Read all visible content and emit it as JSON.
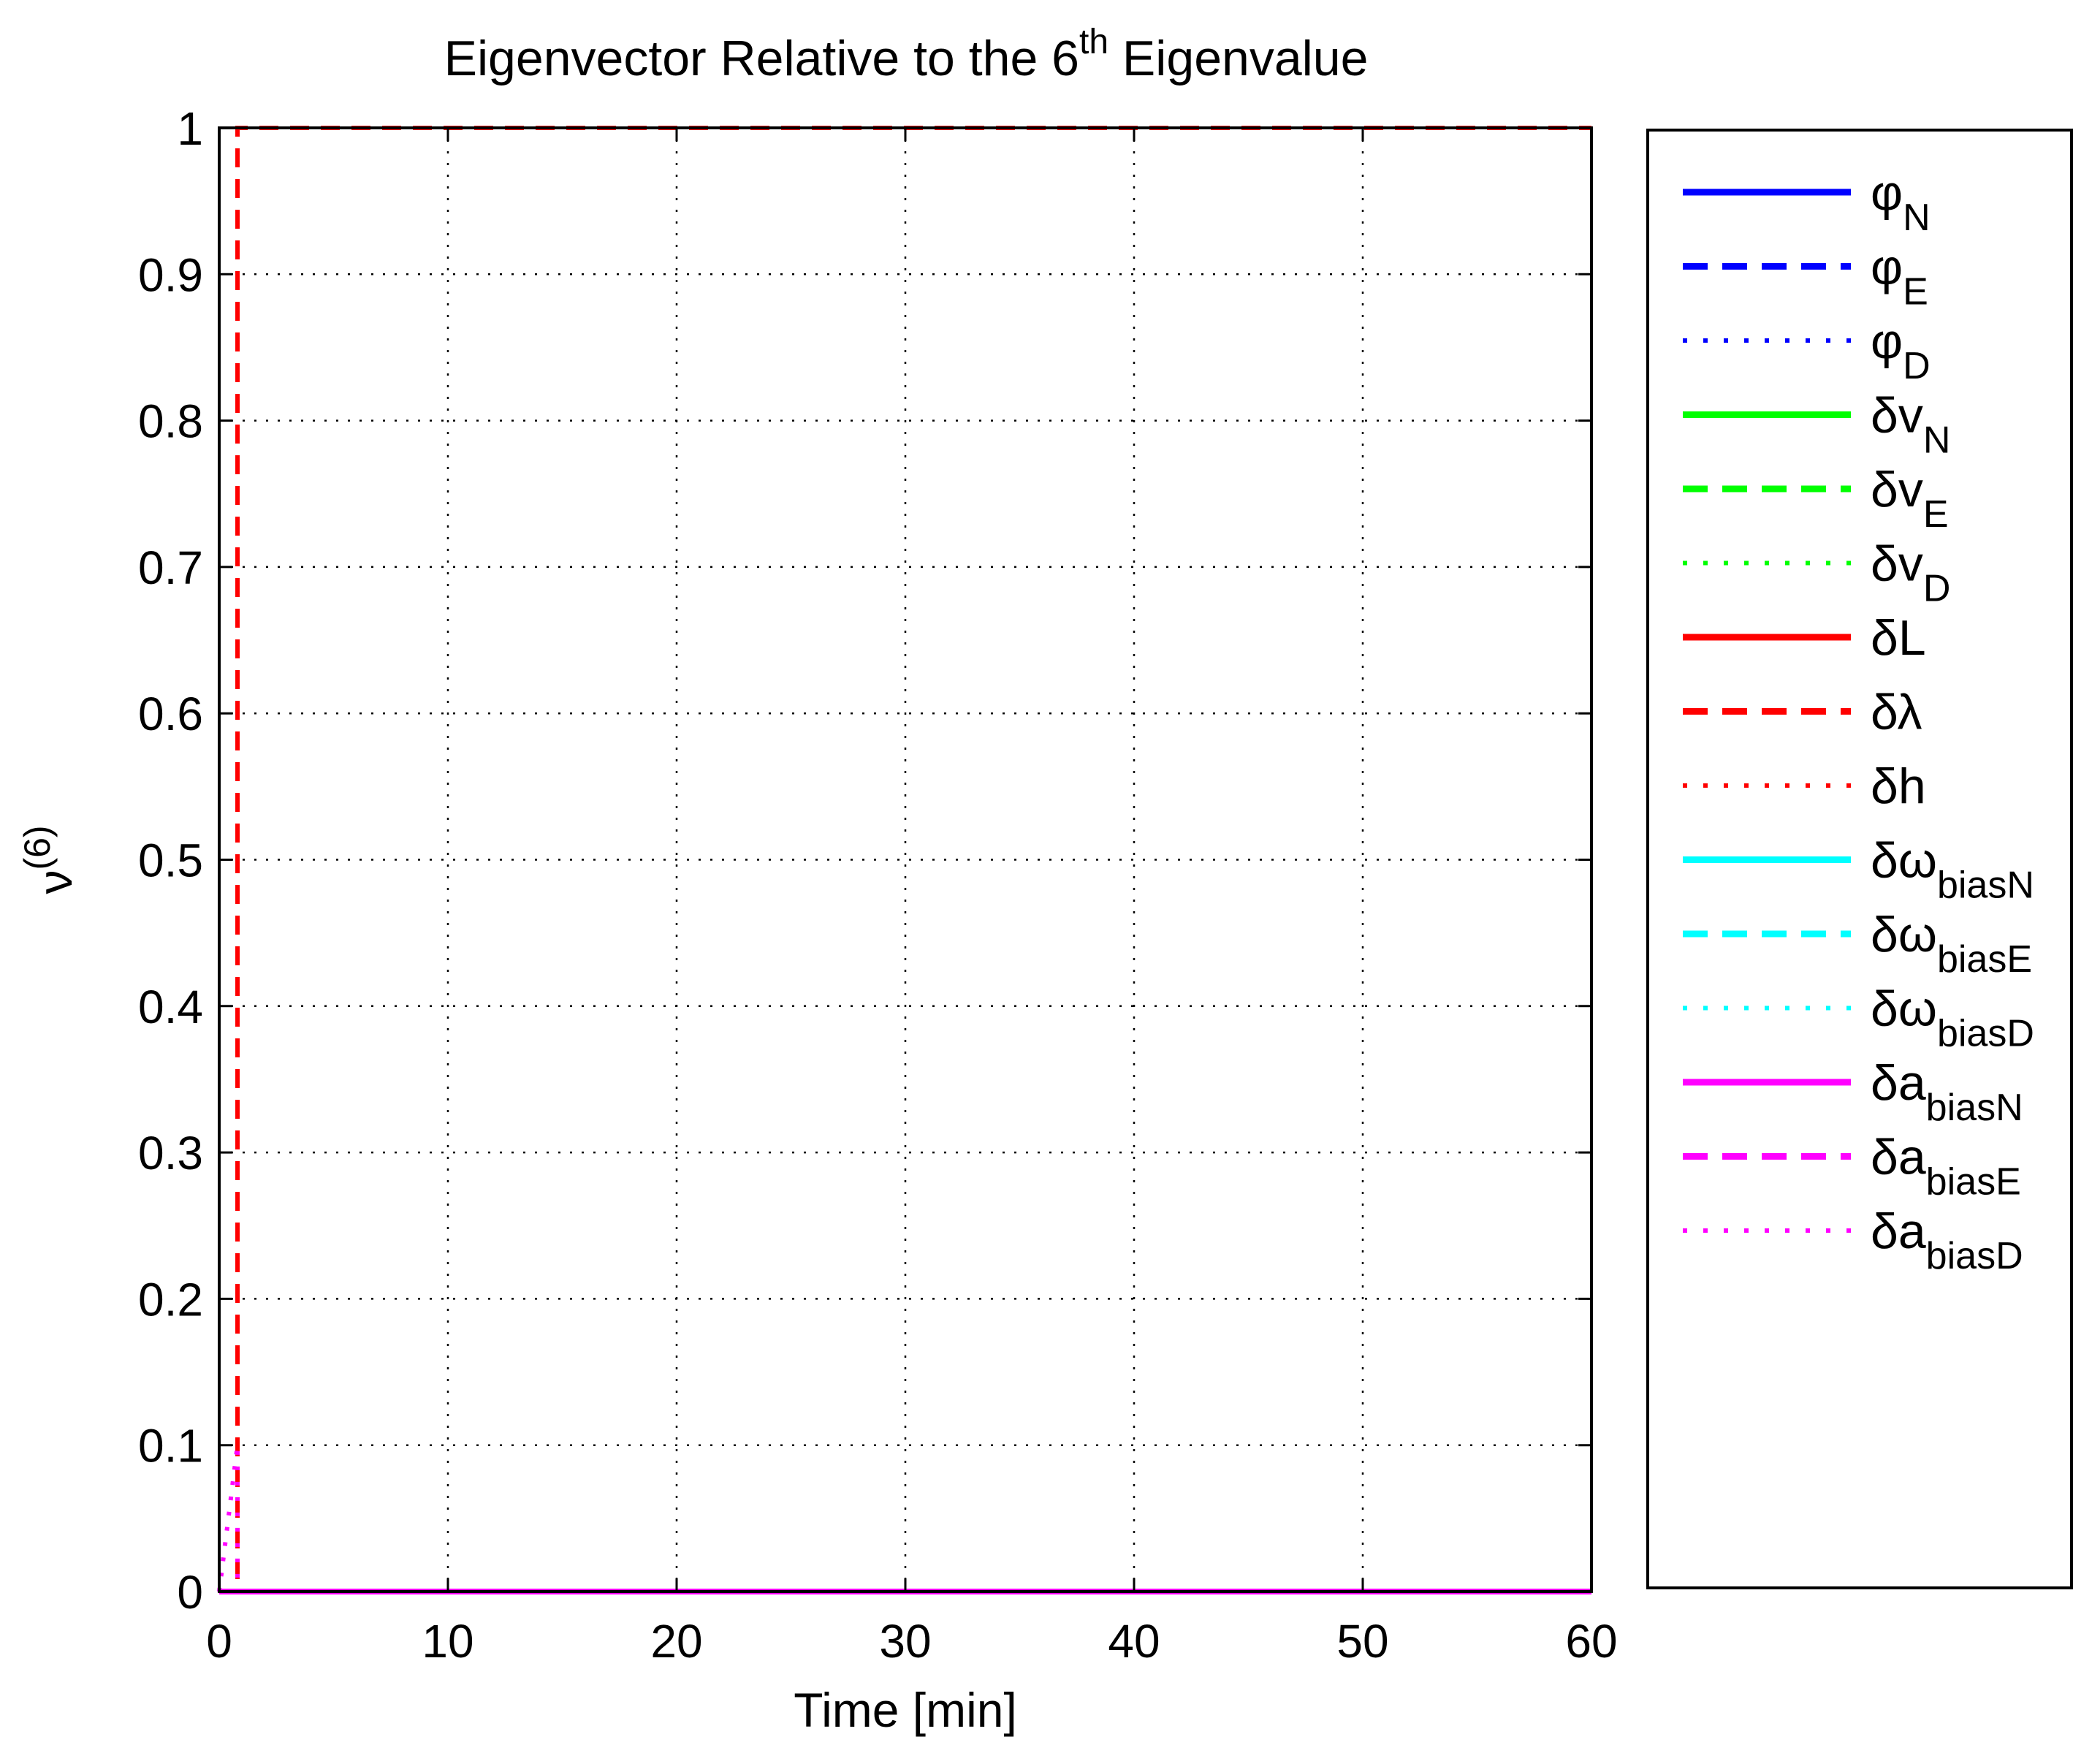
{
  "chart_data": {
    "type": "line",
    "title": {
      "prefix": "Eigenvector Relative to the 6",
      "superscript": "th",
      "suffix": " Eigenvalue"
    },
    "xlabel": "Time [min]",
    "ylabel": {
      "base": "ν",
      "superscript": "(6)"
    },
    "xlim": [
      0,
      60
    ],
    "ylim": [
      0,
      1
    ],
    "xticks": [
      0,
      10,
      20,
      30,
      40,
      50,
      60
    ],
    "xtick_labels": [
      "0",
      "10",
      "20",
      "30",
      "40",
      "50",
      "60"
    ],
    "yticks": [
      0,
      0.1,
      0.2,
      0.3,
      0.4,
      0.5,
      0.6,
      0.7,
      0.8,
      0.9,
      1
    ],
    "ytick_labels": [
      "0",
      "0.1",
      "0.2",
      "0.3",
      "0.4",
      "0.5",
      "0.6",
      "0.7",
      "0.8",
      "0.9",
      "1"
    ],
    "grid": true,
    "legend_position": "outside-right",
    "series": [
      {
        "symbol": "φ",
        "sub": "N",
        "color": "#0000ff",
        "style": "solid",
        "points": [
          [
            0,
            0
          ],
          [
            60,
            0
          ]
        ]
      },
      {
        "symbol": "φ",
        "sub": "E",
        "color": "#0000ff",
        "style": "dashed",
        "points": [
          [
            0,
            0
          ],
          [
            60,
            0
          ]
        ]
      },
      {
        "symbol": "φ",
        "sub": "D",
        "color": "#0000ff",
        "style": "dotted",
        "points": [
          [
            0,
            0
          ],
          [
            60,
            0
          ]
        ]
      },
      {
        "symbol": "δv",
        "sub": "N",
        "color": "#00ff00",
        "style": "solid",
        "points": [
          [
            0,
            0
          ],
          [
            60,
            0
          ]
        ]
      },
      {
        "symbol": "δv",
        "sub": "E",
        "color": "#00ff00",
        "style": "dashed",
        "points": [
          [
            0,
            0
          ],
          [
            60,
            0
          ]
        ]
      },
      {
        "symbol": "δv",
        "sub": "D",
        "color": "#00ff00",
        "style": "dotted",
        "points": [
          [
            0,
            0
          ],
          [
            60,
            0
          ]
        ]
      },
      {
        "symbol": "δL",
        "sub": "",
        "color": "#ff0000",
        "style": "solid",
        "points": [
          [
            0,
            0
          ],
          [
            60,
            0
          ]
        ]
      },
      {
        "symbol": "δλ",
        "sub": "",
        "color": "#ff0000",
        "style": "dashed",
        "points": [
          [
            0,
            0
          ],
          [
            0.8,
            0
          ],
          [
            0.8,
            1
          ],
          [
            60,
            1
          ]
        ]
      },
      {
        "symbol": "δh",
        "sub": "",
        "color": "#ff0000",
        "style": "dotted",
        "points": [
          [
            0,
            0
          ],
          [
            0.8,
            0
          ],
          [
            0.8,
            1
          ],
          [
            60,
            1
          ]
        ]
      },
      {
        "symbol": "δω",
        "sub": "biasN",
        "color": "#00ffff",
        "style": "solid",
        "points": [
          [
            0,
            0
          ],
          [
            60,
            0
          ]
        ]
      },
      {
        "symbol": "δω",
        "sub": "biasE",
        "color": "#00ffff",
        "style": "dashed",
        "points": [
          [
            0,
            0
          ],
          [
            60,
            0
          ]
        ]
      },
      {
        "symbol": "δω",
        "sub": "biasD",
        "color": "#00ffff",
        "style": "dotted",
        "points": [
          [
            0,
            0
          ],
          [
            60,
            0
          ]
        ]
      },
      {
        "symbol": "δa",
        "sub": "biasN",
        "color": "#ff00ff",
        "style": "solid",
        "points": [
          [
            0,
            0
          ],
          [
            60,
            0
          ]
        ]
      },
      {
        "symbol": "δa",
        "sub": "biasE",
        "color": "#ff00ff",
        "style": "dashed",
        "points": [
          [
            0,
            0
          ],
          [
            60,
            0
          ]
        ]
      },
      {
        "symbol": "δa",
        "sub": "biasD",
        "color": "#ff00ff",
        "style": "dotted",
        "points": [
          [
            0,
            0
          ],
          [
            0.8,
            0.1
          ],
          [
            0.8,
            0
          ],
          [
            60,
            0
          ]
        ]
      }
    ]
  }
}
